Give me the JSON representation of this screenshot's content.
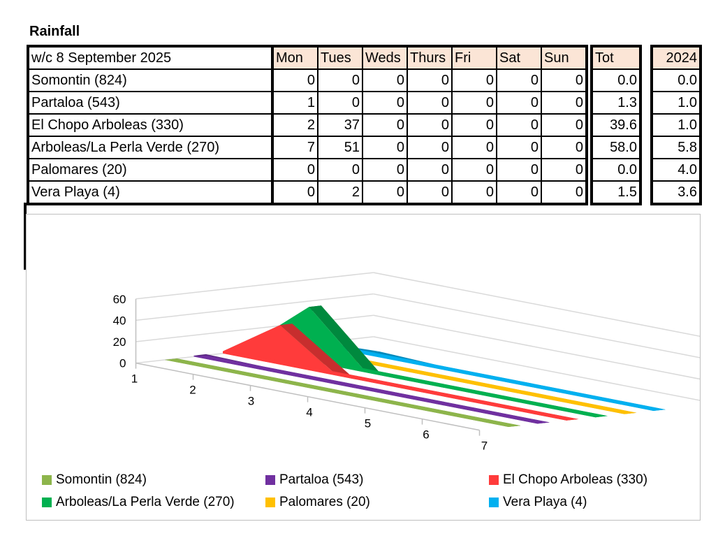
{
  "title": "Rainfall",
  "table": {
    "corner": "w/c 8 September  2025",
    "days": [
      "Mon",
      "Tues",
      "Weds",
      "Thurs",
      "Fri",
      "Sat",
      "Sun"
    ],
    "tot_header": "Tot",
    "y2024_header": "2024",
    "rows": [
      {
        "name": "Somontin (824)",
        "values": [
          "0",
          "0",
          "0",
          "0",
          "0",
          "0",
          "0"
        ],
        "tot": "0.0",
        "y2024": "0.0"
      },
      {
        "name": "Partaloa (543)",
        "values": [
          "1",
          "0",
          "0",
          "0",
          "0",
          "0",
          "0"
        ],
        "tot": "1.3",
        "y2024": "1.0"
      },
      {
        "name": "El Chopo Arboleas (330)",
        "values": [
          "2",
          "37",
          "0",
          "0",
          "0",
          "0",
          "0"
        ],
        "tot": "39.6",
        "y2024": "1.0"
      },
      {
        "name": "Arboleas/La Perla Verde (270)",
        "values": [
          "7",
          "51",
          "0",
          "0",
          "0",
          "0",
          "0"
        ],
        "tot": "58.0",
        "y2024": "5.8"
      },
      {
        "name": "Palomares (20)",
        "values": [
          "0",
          "0",
          "0",
          "0",
          "0",
          "0",
          "0"
        ],
        "tot": "0.0",
        "y2024": "4.0"
      },
      {
        "name": "Vera Playa (4)",
        "values": [
          "0",
          "2",
          "0",
          "0",
          "0",
          "0",
          "0"
        ],
        "tot": "1.5",
        "y2024": "3.6"
      }
    ]
  },
  "chart_data": {
    "type": "area",
    "categories": [
      "1",
      "2",
      "3",
      "4",
      "5",
      "6",
      "7"
    ],
    "ylim": [
      0,
      60
    ],
    "yticks": [
      "0",
      "20",
      "40",
      "60"
    ],
    "grid": true,
    "legend_position": "bottom",
    "series": [
      {
        "name": "Somontin (824)",
        "values": [
          0,
          0,
          0,
          0,
          0,
          0,
          0
        ],
        "color": "#8db54b"
      },
      {
        "name": "Partaloa (543)",
        "values": [
          1,
          0,
          0,
          0,
          0,
          0,
          0
        ],
        "color": "#7030a0"
      },
      {
        "name": "El Chopo Arboleas (330)",
        "values": [
          2,
          37,
          0,
          0,
          0,
          0,
          0
        ],
        "color": "#ff3b3b"
      },
      {
        "name": "Arboleas/La Perla Verde (270)",
        "values": [
          7,
          51,
          0,
          0,
          0,
          0,
          0
        ],
        "color": "#00b050"
      },
      {
        "name": "Palomares (20)",
        "values": [
          0,
          0,
          0,
          0,
          0,
          0,
          0
        ],
        "color": "#ffc000"
      },
      {
        "name": "Vera Playa (4)",
        "values": [
          0,
          2,
          0,
          0,
          0,
          0,
          0
        ],
        "color": "#00b0f0"
      }
    ]
  }
}
